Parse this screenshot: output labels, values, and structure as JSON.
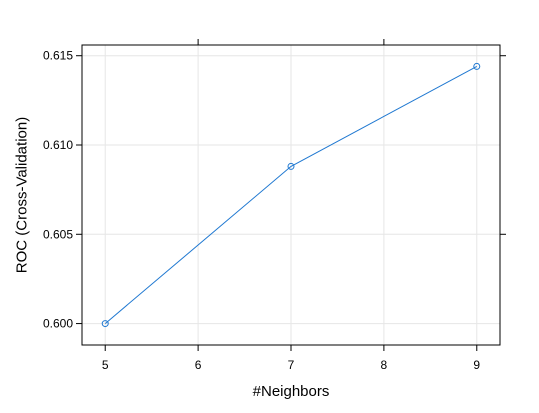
{
  "chart_data": {
    "type": "line",
    "title": "",
    "xlabel": "#Neighbors",
    "ylabel": "ROC (Cross-Validation)",
    "x": [
      5,
      7,
      9
    ],
    "series": [
      {
        "values": [
          0.6,
          0.6088,
          0.6144
        ],
        "color": "#1f78d1",
        "marker": "open-circle"
      }
    ],
    "xlim": [
      4.75,
      9.25
    ],
    "ylim": [
      0.5988,
      0.6156
    ],
    "xticks": [
      5,
      6,
      7,
      8,
      9
    ],
    "xtick_labels": [
      "5",
      "6",
      "7",
      "8",
      "9"
    ],
    "yticks": [
      0.6,
      0.605,
      0.61,
      0.615
    ],
    "ytick_labels": [
      "0.600",
      "0.605",
      "0.610",
      "0.615"
    ],
    "grid": true,
    "grid_color": "#e6e6e6",
    "legend": "none"
  }
}
